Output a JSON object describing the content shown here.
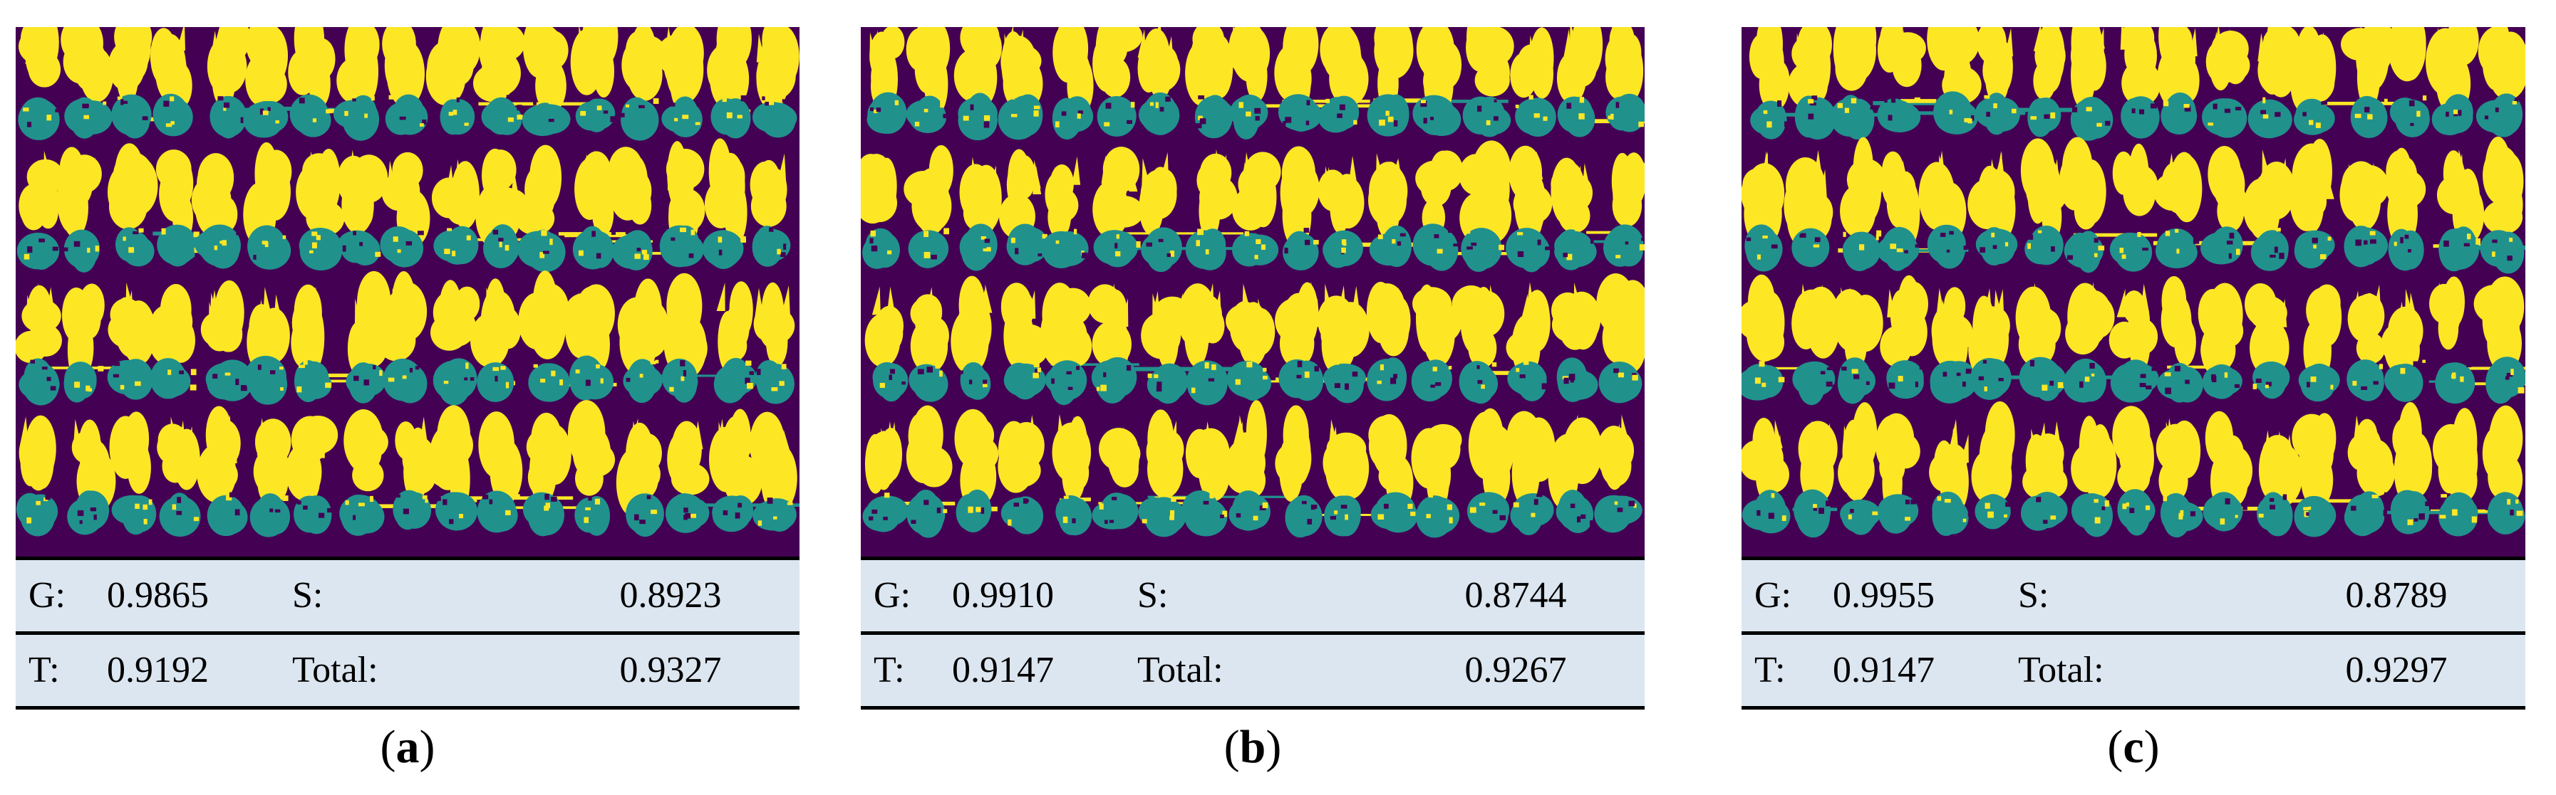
{
  "colors": {
    "background": "#440154",
    "soil": "#fde725",
    "plant": "#21918c",
    "table_bg": "#dce6f0"
  },
  "panels": [
    {
      "image_name": "segmentation-map-a",
      "metrics": [
        {
          "label_left": "G:",
          "value_left": "0.9865",
          "label_right": "S:",
          "value_right": "0.8923"
        },
        {
          "label_left": "T:",
          "value_left": "0.9192",
          "label_right": "Total:",
          "value_right": "0.9327"
        }
      ],
      "caption": {
        "open": "(",
        "letter": "a",
        "close": ")"
      }
    },
    {
      "image_name": "segmentation-map-b",
      "metrics": [
        {
          "label_left": "G:",
          "value_left": "0.9910",
          "label_right": "S:",
          "value_right": "0.8744"
        },
        {
          "label_left": "T:",
          "value_left": "0.9147",
          "label_right": "Total:",
          "value_right": "0.9267"
        }
      ],
      "caption": {
        "open": "(",
        "letter": "b",
        "close": ")"
      }
    },
    {
      "image_name": "segmentation-map-c",
      "metrics": [
        {
          "label_left": "G:",
          "value_left": "0.9955",
          "label_right": "S:",
          "value_right": "0.8789"
        },
        {
          "label_left": "T:",
          "value_left": "0.9147",
          "label_right": "Total:",
          "value_right": "0.9297"
        }
      ],
      "caption": {
        "open": "(",
        "letter": "c",
        "close": ")"
      }
    }
  ]
}
